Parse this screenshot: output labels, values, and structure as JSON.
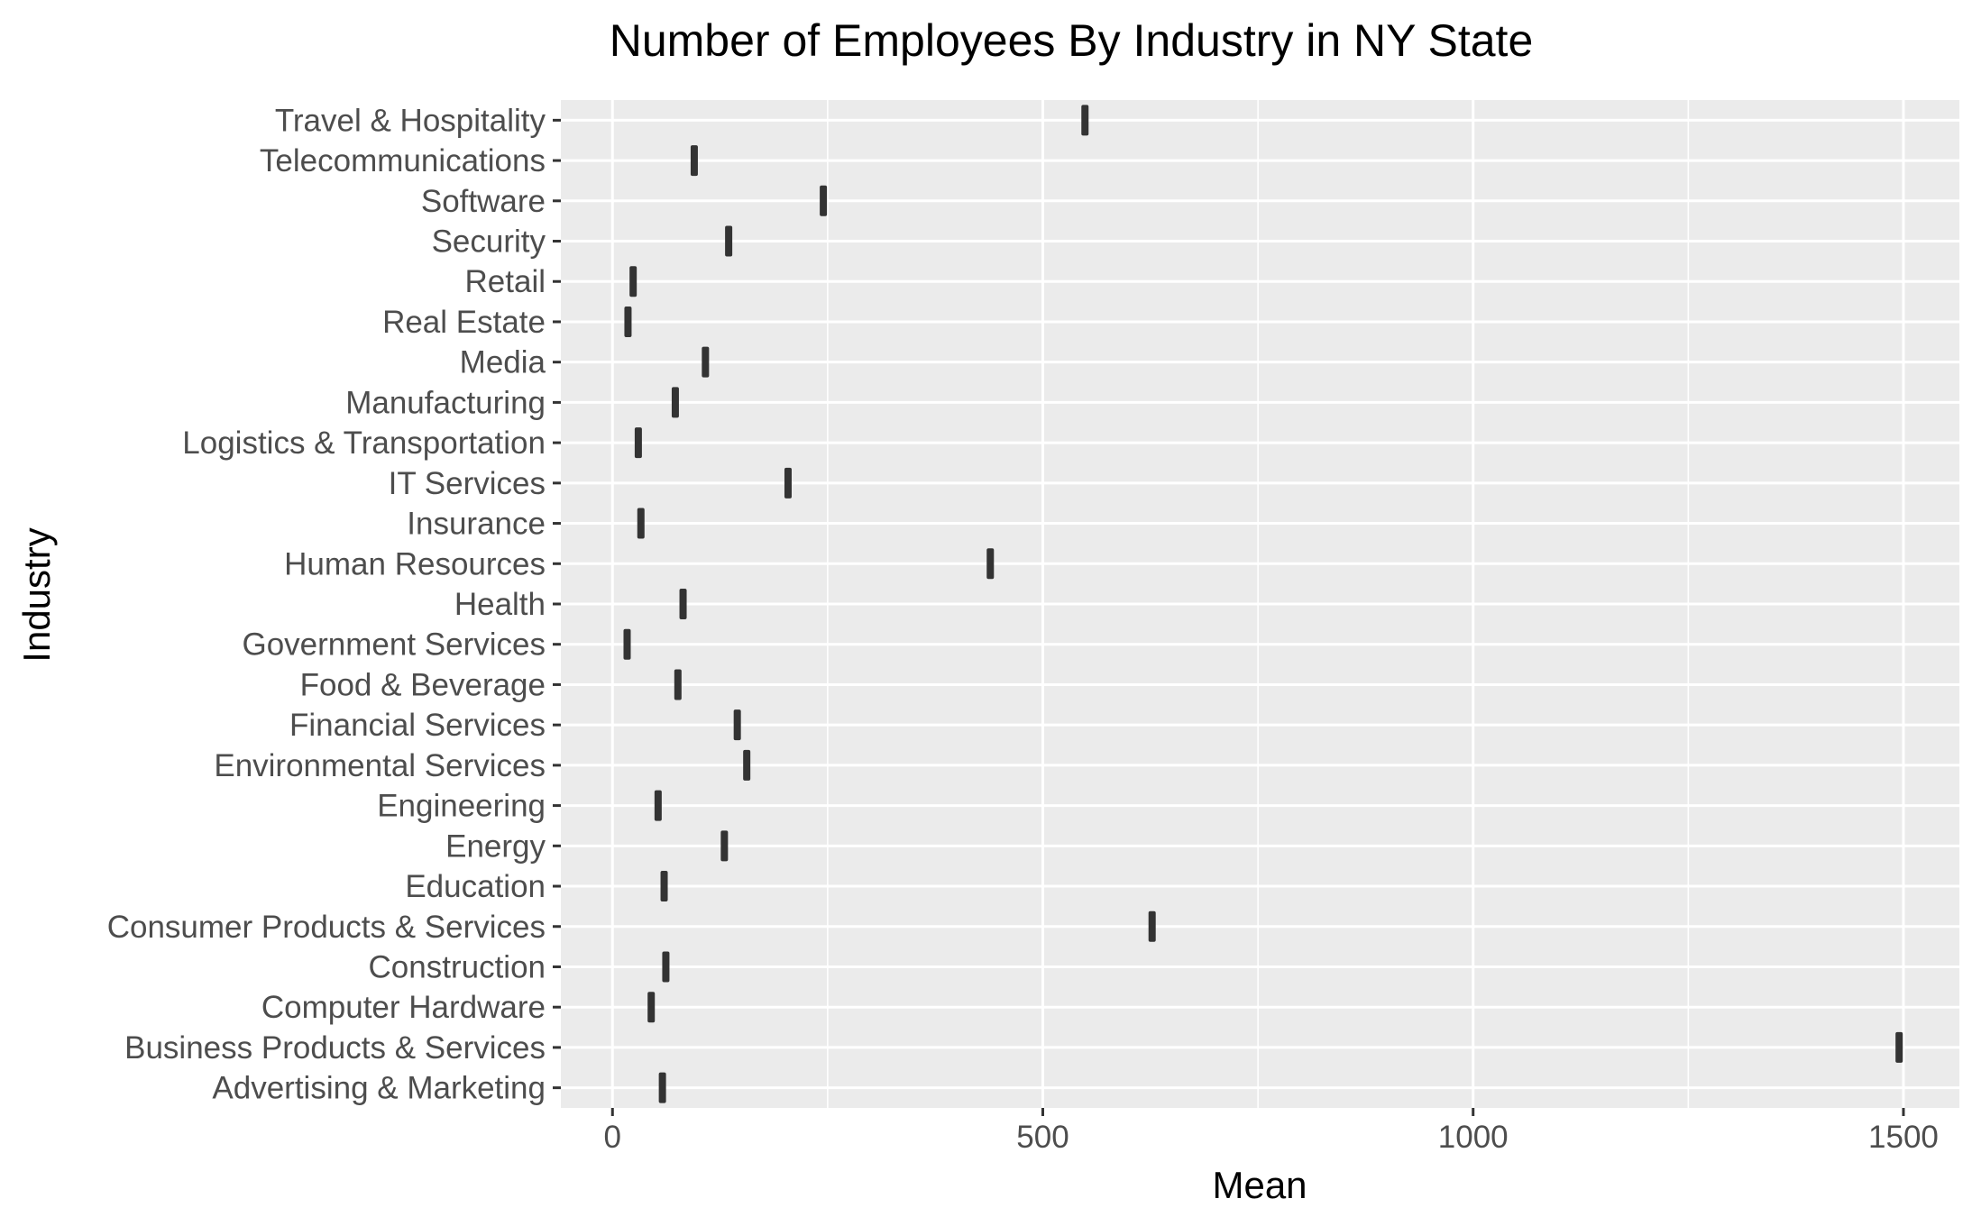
{
  "chart_data": {
    "type": "boxplot",
    "title": "Number of Employees By Industry in NY State",
    "xlabel": "Mean",
    "ylabel": "Industry",
    "xlim": [
      -60,
      1565
    ],
    "x_ticks": [
      0,
      500,
      1000,
      1500
    ],
    "x_tick_labels": [
      "0",
      "500",
      "1000",
      "1500"
    ],
    "grid": true,
    "categories": [
      "Advertising & Marketing",
      "Business Products & Services",
      "Computer Hardware",
      "Construction",
      "Consumer Products & Services",
      "Education",
      "Energy",
      "Engineering",
      "Environmental Services",
      "Financial Services",
      "Food & Beverage",
      "Government Services",
      "Health",
      "Human Resources",
      "Insurance",
      "IT Services",
      "Logistics & Transportation",
      "Manufacturing",
      "Media",
      "Real Estate",
      "Retail",
      "Security",
      "Software",
      "Telecommunications",
      "Travel & Hospitality"
    ],
    "values": [
      58,
      1495,
      45,
      62,
      627,
      60,
      130,
      53,
      156,
      145,
      76,
      17,
      82,
      439,
      33,
      204,
      30,
      73,
      108,
      18,
      24,
      135,
      245,
      95,
      549
    ]
  }
}
